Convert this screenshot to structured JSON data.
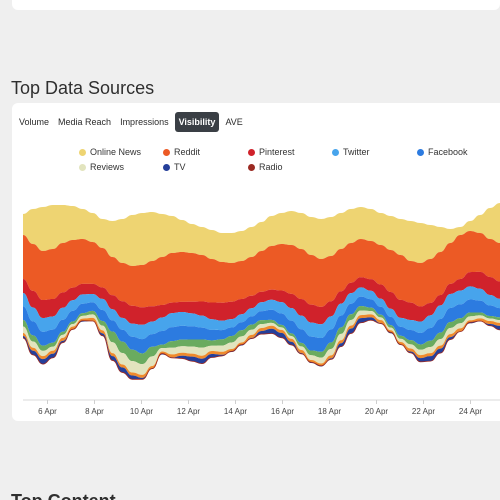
{
  "section": {
    "title": "Top Data Sources"
  },
  "next_section": {
    "title": "Top Content"
  },
  "tabs": [
    {
      "label": "Volume",
      "active": false
    },
    {
      "label": "Media Reach",
      "active": false
    },
    {
      "label": "Impressions",
      "active": false
    },
    {
      "label": "Visibility",
      "active": true
    },
    {
      "label": "AVE",
      "active": false
    }
  ],
  "legend": [
    {
      "label": "Online News",
      "color": "#eed472"
    },
    {
      "label": "Reddit",
      "color": "#ec5a25"
    },
    {
      "label": "Pinterest",
      "color": "#d0222b"
    },
    {
      "label": "Twitter",
      "color": "#47a4ec"
    },
    {
      "label": "Facebook",
      "color": "#2c7be0"
    },
    {
      "label": "Reviews",
      "color": "#e2e4be"
    },
    {
      "label": "TV",
      "color": "#253f9a"
    },
    {
      "label": "Radio",
      "color": "#9b2a22"
    }
  ],
  "chart_data": {
    "type": "area",
    "stacked": true,
    "x_ticks": [
      "6 Apr",
      "8 Apr",
      "10 Apr",
      "12 Apr",
      "14 Apr",
      "16 Apr",
      "18 Apr",
      "20 Apr",
      "22 Apr",
      "24 Apr"
    ],
    "series": [
      {
        "name": "Online News",
        "color": "#eed472"
      },
      {
        "name": "Reddit",
        "color": "#ec5a25"
      },
      {
        "name": "Pinterest",
        "color": "#d0222b"
      },
      {
        "name": "Twitter",
        "color": "#47a4ec"
      },
      {
        "name": "Facebook",
        "color": "#2c7be0"
      },
      {
        "name": "Reviews",
        "color": "#e2e4be"
      },
      {
        "name": "TV",
        "color": "#253f9a"
      },
      {
        "name": "Radio",
        "color": "#9b2a22"
      }
    ],
    "extra_band_colors": [
      "#ef8a2c",
      "#6aab5f"
    ],
    "grid": false,
    "legend_position": "top"
  }
}
